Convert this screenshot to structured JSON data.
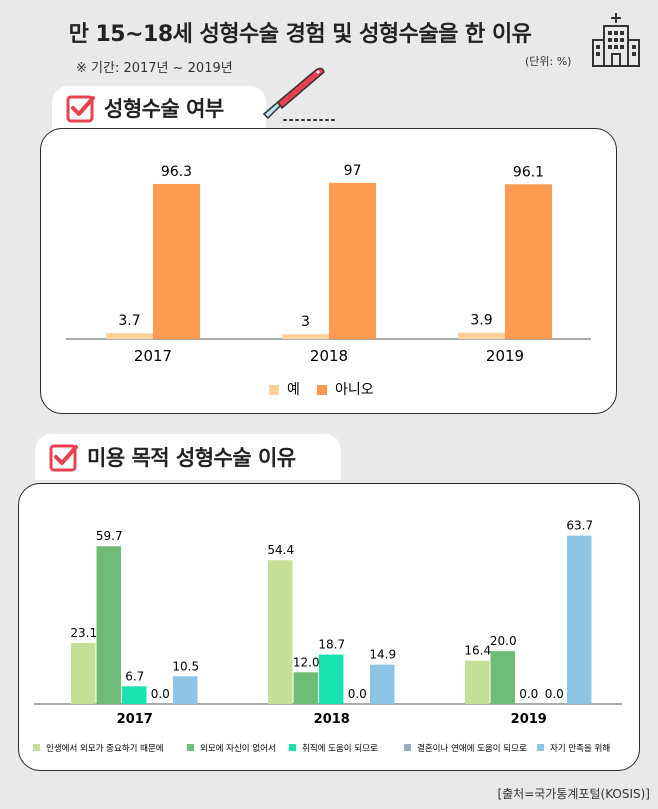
{
  "header": {
    "title": "만 15~18세 성형수술 경험 및 성형수술을 한 이유",
    "period": "※ 기간: 2017년 ~ 2019년",
    "unit": "(단위: %)"
  },
  "section1": {
    "label": "성형수술 여부"
  },
  "section2": {
    "label": "미용 목적 성형수술 이유"
  },
  "source": "[출처=국가통계포털(KOSIS)]",
  "colors": {
    "yes": "#fdd09c",
    "no": "#fd9950",
    "r1": "#c7de96",
    "r2": "#6fbb78",
    "r3": "#18e2b0",
    "r4": "#9aa9c4",
    "r5": "#8ec5e6",
    "check": "#e8404f"
  },
  "chart_data": [
    {
      "type": "bar",
      "categories": [
        "2017",
        "2018",
        "2019"
      ],
      "series": [
        {
          "name": "예",
          "values": [
            3.7,
            3,
            3.9
          ],
          "labels": [
            "3.7",
            "3",
            "3.9"
          ]
        },
        {
          "name": "아니오",
          "values": [
            96.3,
            97,
            96.1
          ],
          "labels": [
            "96.3",
            "97",
            "96.1"
          ]
        }
      ],
      "ylim": [
        0,
        100
      ],
      "legend": "bottom-center"
    },
    {
      "type": "bar",
      "categories": [
        "2017",
        "2018",
        "2019"
      ],
      "series": [
        {
          "name": "인생에서 외모가 중요하기 때문에",
          "values": [
            23.1,
            54.4,
            16.4
          ],
          "labels": [
            "23.1",
            "54.4",
            "16.4"
          ]
        },
        {
          "name": "외모에 자신이 없어서",
          "values": [
            59.7,
            12.0,
            20.0
          ],
          "labels": [
            "59.7",
            "12.0",
            "20.0"
          ]
        },
        {
          "name": "취직에 도움이 되므로",
          "values": [
            6.7,
            18.7,
            0.0
          ],
          "labels": [
            "6.7",
            "18.7",
            "0.0"
          ]
        },
        {
          "name": "결혼이나 연애에 도움이 되므로",
          "values": [
            0.0,
            0.0,
            0.0
          ],
          "labels": [
            "0.0",
            "0.0",
            "0.0"
          ]
        },
        {
          "name": "자기 만족을 위해",
          "values": [
            10.5,
            14.9,
            63.7
          ],
          "labels": [
            "10.5",
            "14.9",
            "63.7"
          ]
        }
      ],
      "ylim": [
        0,
        70
      ],
      "legend": "bottom"
    }
  ]
}
